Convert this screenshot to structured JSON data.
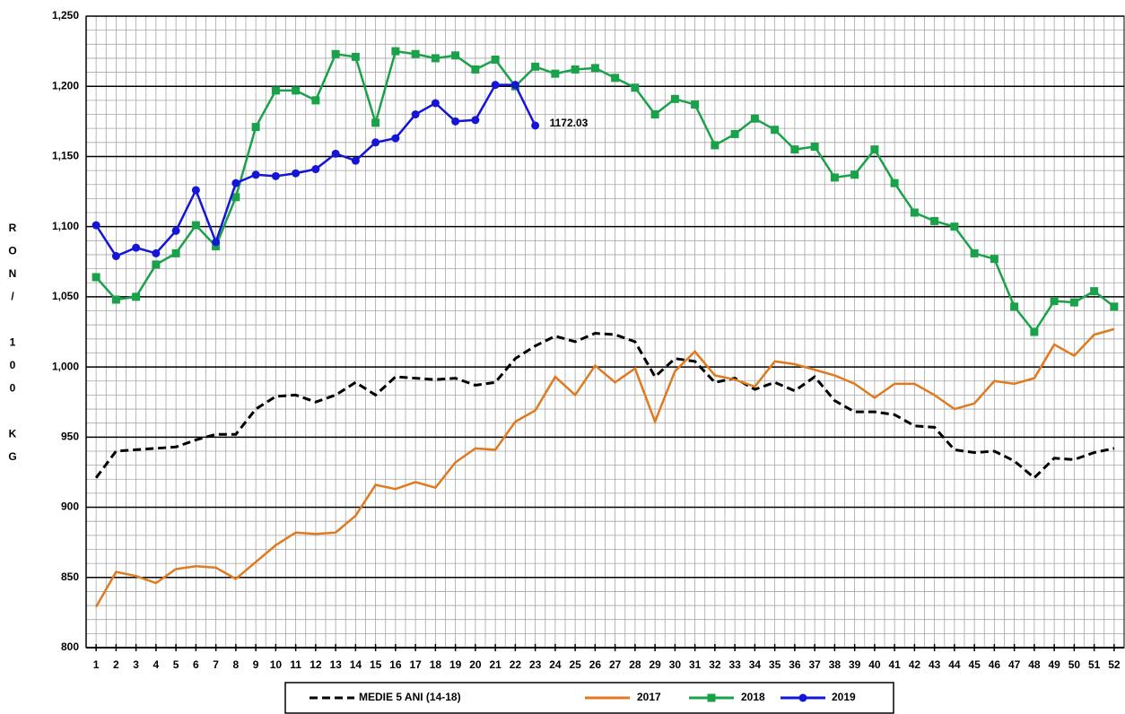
{
  "chart_data": {
    "type": "line",
    "y_label": "RON/ 100 KG",
    "annotation": "1172.03",
    "categories": [
      "1",
      "2",
      "3",
      "4",
      "5",
      "6",
      "7",
      "8",
      "9",
      "10",
      "11",
      "12",
      "13",
      "14",
      "15",
      "16",
      "17",
      "18",
      "19",
      "20",
      "21",
      "22",
      "23",
      "24",
      "25",
      "26",
      "27",
      "28",
      "29",
      "30",
      "31",
      "32",
      "33",
      "34",
      "35",
      "36",
      "37",
      "38",
      "39",
      "40",
      "41",
      "42",
      "43",
      "44",
      "45",
      "46",
      "47",
      "48",
      "49",
      "50",
      "51",
      "52"
    ],
    "series": [
      {
        "name": "MEDIE 5 ANI (14-18)",
        "color": "#000000",
        "dash": true,
        "marker": "none",
        "values": [
          921,
          940,
          941,
          942,
          943,
          948,
          952,
          952,
          970,
          979,
          980,
          975,
          980,
          989,
          980,
          993,
          992,
          991,
          992,
          987,
          989,
          1006,
          1015,
          1022,
          1018,
          1024,
          1023,
          1018,
          993,
          1006,
          1004,
          989,
          992,
          984,
          989,
          983,
          993,
          976,
          968,
          968,
          966,
          958,
          957,
          941,
          939,
          940,
          933,
          921,
          935,
          934,
          939,
          942
        ]
      },
      {
        "name": "2017",
        "color": "#e07a1f",
        "dash": false,
        "marker": "none",
        "values": [
          829,
          854,
          851,
          846,
          856,
          858,
          857,
          849,
          861,
          873,
          882,
          881,
          882,
          894,
          916,
          913,
          918,
          914,
          932,
          942,
          941,
          961,
          969,
          993,
          980,
          1001,
          989,
          999,
          961,
          997,
          1011,
          994,
          991,
          986,
          1004,
          1002,
          998,
          994,
          988,
          978,
          988,
          988,
          980,
          970,
          974,
          990,
          988,
          992,
          1016,
          1008,
          1023,
          1027
        ]
      },
      {
        "name": "2018",
        "color": "#1aa24b",
        "dash": false,
        "marker": "square",
        "values": [
          1064,
          1048,
          1050,
          1073,
          1081,
          1101,
          1086,
          1121,
          1171,
          1197,
          1197,
          1190,
          1223,
          1221,
          1174,
          1225,
          1223,
          1220,
          1222,
          1212,
          1219,
          1200,
          1214,
          1209,
          1212,
          1213,
          1206,
          1199,
          1180,
          1191,
          1187,
          1158,
          1166,
          1177,
          1169,
          1155,
          1157,
          1135,
          1137,
          1155,
          1131,
          1110,
          1104,
          1100,
          1081,
          1077,
          1043,
          1025,
          1047,
          1046,
          1054,
          1043
        ]
      },
      {
        "name": "2019",
        "color": "#1515d8",
        "dash": false,
        "marker": "circle",
        "values": [
          1101,
          1079,
          1085,
          1081,
          1097,
          1126,
          1089,
          1131,
          1137,
          1136,
          1138,
          1141,
          1152,
          1147,
          1160,
          1163,
          1180,
          1188,
          1175,
          1176,
          1201,
          1201,
          1172.03,
          null,
          null,
          null,
          null,
          null,
          null,
          null,
          null,
          null,
          null,
          null,
          null,
          null,
          null,
          null,
          null,
          null,
          null,
          null,
          null,
          null,
          null,
          null,
          null,
          null,
          null,
          null,
          null,
          null
        ]
      }
    ],
    "ylim": [
      800,
      1250
    ],
    "yticks": [
      800,
      850,
      900,
      950,
      {
        "value": 1000,
        "label": "1,000"
      },
      {
        "value": 1050,
        "label": "1,050"
      },
      {
        "value": 1100,
        "label": "1,100"
      },
      {
        "value": 1150,
        "label": "1,150"
      },
      {
        "value": 1200,
        "label": "1,200"
      },
      {
        "value": 1250,
        "label": "1,250"
      }
    ],
    "minor_yticks": [
      810,
      820,
      830,
      840,
      860,
      870,
      880,
      890,
      910,
      920,
      930,
      940,
      960,
      970,
      980,
      990,
      1010,
      1020,
      1030,
      1040,
      1060,
      1070,
      1080,
      1090,
      1110,
      1120,
      1130,
      1140,
      1160,
      1170,
      1180,
      1190,
      1210,
      1220,
      1230,
      1240
    ],
    "grid": true
  }
}
